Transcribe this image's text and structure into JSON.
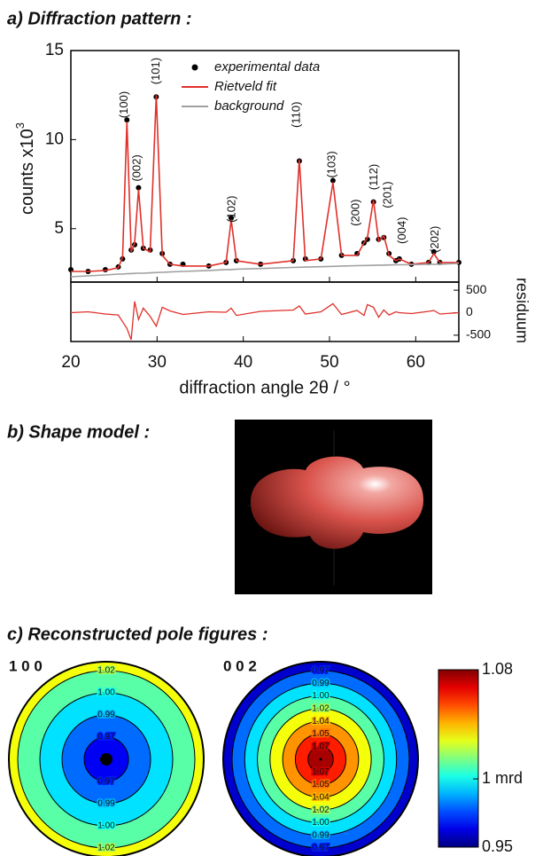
{
  "chart_data": [
    {
      "type": "line",
      "title": "a)  Diffraction pattern :",
      "x_label": "diffraction angle 2θ / °",
      "y_label": "counts  x10",
      "y_label_exponent": "3",
      "y2_label": "residuum",
      "xlim": [
        20,
        65
      ],
      "xticks": [
        20,
        30,
        40,
        50,
        60
      ],
      "ylim": [
        2,
        15
      ],
      "yticks": [
        5,
        10,
        15
      ],
      "y2lim": [
        -640,
        680
      ],
      "y2ticks": [
        -500,
        0,
        500
      ],
      "legend": "upper right",
      "x": [
        20,
        22,
        24,
        25.5,
        26,
        26.5,
        27,
        27.4,
        27.85,
        28.4,
        29.2,
        29.9,
        30.6,
        31.5,
        33,
        36,
        38,
        38.6,
        39.2,
        42,
        45.8,
        46.5,
        47.2,
        49,
        50.4,
        51.4,
        53.2,
        54,
        54.4,
        55.1,
        55.7,
        56.3,
        56.9,
        57.7,
        58.1,
        59.5,
        61.5,
        62.1,
        62.8,
        65
      ],
      "series": [
        {
          "name": "experimental data",
          "color": "#000000",
          "marker": "dot",
          "values": [
            2.7,
            2.6,
            2.7,
            2.85,
            3.3,
            11.1,
            3.8,
            4.1,
            7.3,
            3.9,
            3.8,
            12.4,
            3.6,
            3.0,
            3.0,
            2.9,
            3.1,
            5.6,
            3.2,
            3.0,
            3.2,
            8.8,
            3.3,
            3.3,
            7.7,
            3.5,
            3.6,
            4.2,
            4.4,
            6.5,
            4.4,
            4.5,
            3.6,
            3.2,
            3.3,
            3.0,
            3.1,
            3.7,
            3.1,
            3.1
          ]
        },
        {
          "name": "Rietveld fit",
          "color": "#e0302a",
          "values": [
            2.6,
            2.6,
            2.65,
            2.8,
            3.4,
            11.0,
            3.7,
            4.2,
            7.2,
            3.9,
            3.7,
            12.5,
            3.5,
            3.0,
            2.9,
            2.9,
            3.1,
            5.5,
            3.2,
            3.0,
            3.2,
            8.9,
            3.2,
            3.3,
            7.6,
            3.5,
            3.5,
            4.2,
            4.5,
            6.6,
            4.3,
            4.6,
            3.5,
            3.2,
            3.3,
            3.0,
            3.1,
            3.6,
            3.1,
            3.1
          ]
        },
        {
          "name": "background",
          "color": "#a0a0a0",
          "values": [
            2.3,
            2.35,
            2.4,
            2.45,
            2.45,
            2.47,
            2.48,
            2.49,
            2.5,
            2.5,
            2.52,
            2.54,
            2.55,
            2.57,
            2.6,
            2.65,
            2.7,
            2.7,
            2.72,
            2.76,
            2.82,
            2.83,
            2.84,
            2.86,
            2.88,
            2.9,
            2.92,
            2.93,
            2.93,
            2.94,
            2.95,
            2.95,
            2.96,
            2.97,
            2.97,
            2.98,
            3.0,
            3.0,
            3.0,
            3.05
          ]
        },
        {
          "color": "#e0302a",
          "axis": "y2",
          "values": [
            0,
            20,
            -30,
            -50,
            -200,
            -350,
            -600,
            250,
            -150,
            100,
            -80,
            -300,
            120,
            40,
            -40,
            20,
            10,
            100,
            -60,
            30,
            60,
            150,
            -30,
            20,
            200,
            -40,
            50,
            -60,
            180,
            120,
            -100,
            60,
            -50,
            20,
            0,
            -20,
            30,
            50,
            -30,
            0
          ]
        }
      ],
      "annotations": [
        {
          "text": "(100)",
          "x": 26.2,
          "y": 11.96
        },
        {
          "text": "(002)",
          "x": 27.7,
          "y": 8.4
        },
        {
          "text": "(101)",
          "x": 29.9,
          "y": 13.85
        },
        {
          "text": "(102)",
          "x": 38.7,
          "y": 6.1
        },
        {
          "text": "(110)",
          "x": 46.2,
          "y": 11.4
        },
        {
          "text": "(103)",
          "x": 50.3,
          "y": 8.6
        },
        {
          "text": "(200)",
          "x": 53.1,
          "y": 5.9
        },
        {
          "text": "(112)",
          "x": 55.2,
          "y": 7.9
        },
        {
          "text": "(201)",
          "x": 56.8,
          "y": 6.9
        },
        {
          "text": "(004)",
          "x": 58.5,
          "y": 4.9
        },
        {
          "text": "(202)",
          "x": 62.3,
          "y": 4.4
        }
      ]
    },
    {
      "type": "image",
      "title": "b)  Shape model :"
    },
    {
      "type": "pole_figure",
      "title": "c)  Reconstructed pole figures :",
      "clim": [
        0.95,
        1.08
      ],
      "cticks": [
        1.08,
        {
          "value": 1,
          "label": "1 mrd"
        },
        0.95
      ],
      "figures": [
        {
          "name": "1 0 0",
          "contours": [
            1.02,
            {
              "value": 1,
              "label": "1.00"
            },
            0.99,
            0.97
          ]
        },
        {
          "name": "0 0 2",
          "contours": [
            0.97,
            0.99,
            {
              "value": 1,
              "label": "1.00"
            },
            1.02,
            1.04,
            1.05,
            1.07
          ]
        }
      ]
    }
  ]
}
